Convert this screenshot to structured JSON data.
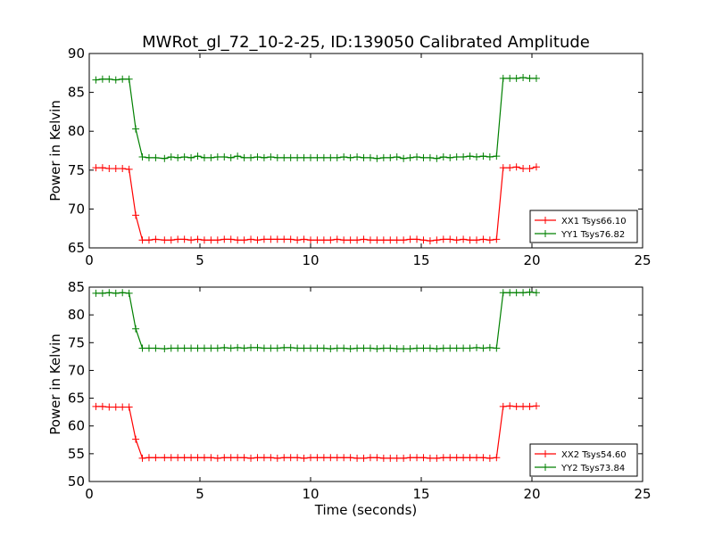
{
  "figure": {
    "title": "MWRot_gl_72_10-2-25, ID:139050 Calibrated Amplitude"
  },
  "chart_data": [
    {
      "type": "line",
      "title": "MWRot_gl_72_10-2-25, ID:139050 Calibrated Amplitude",
      "xlabel": "",
      "ylabel": "Power in Kelvin",
      "xlim": [
        0,
        25
      ],
      "ylim": [
        65,
        90
      ],
      "x_ticks": [
        0,
        5,
        10,
        15,
        20,
        25
      ],
      "y_ticks": [
        65,
        70,
        75,
        80,
        85,
        90
      ],
      "grid": false,
      "legend": "lower-right",
      "series": [
        {
          "name": "XX1 Tsys66.10",
          "color": "#ff0000",
          "marker": "plus",
          "x": [
            0.3,
            0.6,
            0.9,
            1.2,
            1.5,
            1.8,
            2.1,
            2.4,
            2.7,
            3.0,
            3.4,
            3.7,
            4.0,
            4.3,
            4.6,
            4.9,
            5.2,
            5.5,
            5.8,
            6.1,
            6.4,
            6.7,
            7.0,
            7.3,
            7.6,
            7.9,
            8.2,
            8.5,
            8.8,
            9.1,
            9.4,
            9.7,
            10.0,
            10.3,
            10.6,
            10.9,
            11.2,
            11.5,
            11.8,
            12.1,
            12.4,
            12.7,
            13.0,
            13.3,
            13.6,
            13.9,
            14.2,
            14.5,
            14.8,
            15.1,
            15.4,
            15.7,
            16.0,
            16.3,
            16.6,
            16.9,
            17.2,
            17.5,
            17.8,
            18.1,
            18.4,
            18.7,
            19.0,
            19.3,
            19.6,
            19.9,
            20.2
          ],
          "y": [
            75.3,
            75.3,
            75.2,
            75.2,
            75.2,
            75.1,
            69.2,
            66.0,
            66.0,
            66.1,
            66.0,
            66.0,
            66.1,
            66.1,
            66.0,
            66.1,
            66.0,
            66.0,
            66.0,
            66.1,
            66.1,
            66.0,
            66.0,
            66.1,
            66.0,
            66.1,
            66.1,
            66.1,
            66.1,
            66.1,
            66.0,
            66.1,
            66.0,
            66.0,
            66.0,
            66.0,
            66.1,
            66.0,
            66.0,
            66.0,
            66.1,
            66.0,
            66.0,
            66.0,
            66.0,
            66.0,
            66.0,
            66.1,
            66.1,
            66.0,
            65.9,
            66.0,
            66.1,
            66.1,
            66.0,
            66.1,
            66.0,
            66.0,
            66.1,
            66.0,
            66.1,
            75.3,
            75.3,
            75.4,
            75.2,
            75.2,
            75.4
          ]
        },
        {
          "name": "YY1 Tsys76.82",
          "color": "#008000",
          "marker": "plus",
          "x": [
            0.3,
            0.6,
            0.9,
            1.2,
            1.5,
            1.8,
            2.1,
            2.4,
            2.7,
            3.0,
            3.4,
            3.7,
            4.0,
            4.3,
            4.6,
            4.9,
            5.2,
            5.5,
            5.8,
            6.1,
            6.4,
            6.7,
            7.0,
            7.3,
            7.6,
            7.9,
            8.2,
            8.5,
            8.8,
            9.1,
            9.4,
            9.7,
            10.0,
            10.3,
            10.6,
            10.9,
            11.2,
            11.5,
            11.8,
            12.1,
            12.4,
            12.7,
            13.0,
            13.3,
            13.6,
            13.9,
            14.2,
            14.5,
            14.8,
            15.1,
            15.4,
            15.7,
            16.0,
            16.3,
            16.6,
            16.9,
            17.2,
            17.5,
            17.8,
            18.1,
            18.4,
            18.7,
            19.0,
            19.3,
            19.6,
            19.9,
            20.2
          ],
          "y": [
            86.6,
            86.7,
            86.7,
            86.6,
            86.7,
            86.7,
            80.3,
            76.7,
            76.6,
            76.6,
            76.5,
            76.7,
            76.6,
            76.7,
            76.6,
            76.8,
            76.6,
            76.6,
            76.7,
            76.7,
            76.6,
            76.8,
            76.6,
            76.6,
            76.7,
            76.6,
            76.7,
            76.6,
            76.6,
            76.6,
            76.6,
            76.6,
            76.6,
            76.6,
            76.6,
            76.6,
            76.6,
            76.7,
            76.6,
            76.7,
            76.6,
            76.6,
            76.5,
            76.6,
            76.6,
            76.7,
            76.5,
            76.6,
            76.7,
            76.6,
            76.6,
            76.5,
            76.7,
            76.6,
            76.7,
            76.7,
            76.8,
            76.7,
            76.8,
            76.7,
            76.8,
            86.8,
            86.8,
            86.8,
            86.9,
            86.8,
            86.8
          ]
        }
      ]
    },
    {
      "type": "line",
      "title": "",
      "xlabel": "Time (seconds)",
      "ylabel": "Power in Kelvin",
      "xlim": [
        0,
        25
      ],
      "ylim": [
        50,
        85
      ],
      "x_ticks": [
        0,
        5,
        10,
        15,
        20,
        25
      ],
      "y_ticks": [
        50,
        55,
        60,
        65,
        70,
        75,
        80,
        85
      ],
      "grid": false,
      "legend": "lower-right",
      "series": [
        {
          "name": "XX2 Tsys54.60",
          "color": "#ff0000",
          "marker": "plus",
          "x": [
            0.3,
            0.6,
            0.9,
            1.2,
            1.5,
            1.8,
            2.1,
            2.4,
            2.7,
            3.0,
            3.4,
            3.7,
            4.0,
            4.3,
            4.6,
            4.9,
            5.2,
            5.5,
            5.8,
            6.1,
            6.4,
            6.7,
            7.0,
            7.3,
            7.6,
            7.9,
            8.2,
            8.5,
            8.8,
            9.1,
            9.4,
            9.7,
            10.0,
            10.3,
            10.6,
            10.9,
            11.2,
            11.5,
            11.8,
            12.1,
            12.4,
            12.7,
            13.0,
            13.3,
            13.6,
            13.9,
            14.2,
            14.5,
            14.8,
            15.1,
            15.4,
            15.7,
            16.0,
            16.3,
            16.6,
            16.9,
            17.2,
            17.5,
            17.8,
            18.1,
            18.4,
            18.7,
            19.0,
            19.3,
            19.6,
            19.9,
            20.2
          ],
          "y": [
            63.5,
            63.5,
            63.4,
            63.4,
            63.4,
            63.4,
            57.6,
            54.2,
            54.3,
            54.3,
            54.3,
            54.3,
            54.3,
            54.3,
            54.3,
            54.3,
            54.3,
            54.3,
            54.2,
            54.3,
            54.3,
            54.3,
            54.3,
            54.2,
            54.3,
            54.3,
            54.3,
            54.2,
            54.3,
            54.3,
            54.3,
            54.2,
            54.3,
            54.3,
            54.3,
            54.3,
            54.3,
            54.3,
            54.3,
            54.2,
            54.2,
            54.3,
            54.3,
            54.2,
            54.2,
            54.2,
            54.2,
            54.3,
            54.3,
            54.3,
            54.2,
            54.2,
            54.3,
            54.3,
            54.3,
            54.3,
            54.3,
            54.3,
            54.3,
            54.2,
            54.3,
            63.5,
            63.6,
            63.5,
            63.5,
            63.5,
            63.6
          ]
        },
        {
          "name": "YY2 Tsys73.84",
          "color": "#008000",
          "marker": "plus",
          "x": [
            0.3,
            0.6,
            0.9,
            1.2,
            1.5,
            1.8,
            2.1,
            2.4,
            2.7,
            3.0,
            3.4,
            3.7,
            4.0,
            4.3,
            4.6,
            4.9,
            5.2,
            5.5,
            5.8,
            6.1,
            6.4,
            6.7,
            7.0,
            7.3,
            7.6,
            7.9,
            8.2,
            8.5,
            8.8,
            9.1,
            9.4,
            9.7,
            10.0,
            10.3,
            10.6,
            10.9,
            11.2,
            11.5,
            11.8,
            12.1,
            12.4,
            12.7,
            13.0,
            13.3,
            13.6,
            13.9,
            14.2,
            14.5,
            14.8,
            15.1,
            15.4,
            15.7,
            16.0,
            16.3,
            16.6,
            16.9,
            17.2,
            17.5,
            17.8,
            18.1,
            18.4,
            18.7,
            19.0,
            19.3,
            19.6,
            19.9,
            20.2
          ],
          "y": [
            83.9,
            83.9,
            84.0,
            83.9,
            84.0,
            83.9,
            77.5,
            74.0,
            74.0,
            74.0,
            73.9,
            74.0,
            74.0,
            74.0,
            74.0,
            74.0,
            74.0,
            74.0,
            74.0,
            74.1,
            74.0,
            74.1,
            74.0,
            74.1,
            74.1,
            74.0,
            74.0,
            74.0,
            74.1,
            74.1,
            74.0,
            74.0,
            74.0,
            74.0,
            74.0,
            73.9,
            74.0,
            74.0,
            73.9,
            74.0,
            74.0,
            74.0,
            73.9,
            74.0,
            74.0,
            73.9,
            73.9,
            73.9,
            74.0,
            74.0,
            74.0,
            73.9,
            74.0,
            74.0,
            74.0,
            74.0,
            74.0,
            74.1,
            74.0,
            74.1,
            74.0,
            84.0,
            84.0,
            84.0,
            84.0,
            84.1,
            84.0
          ]
        }
      ]
    }
  ]
}
